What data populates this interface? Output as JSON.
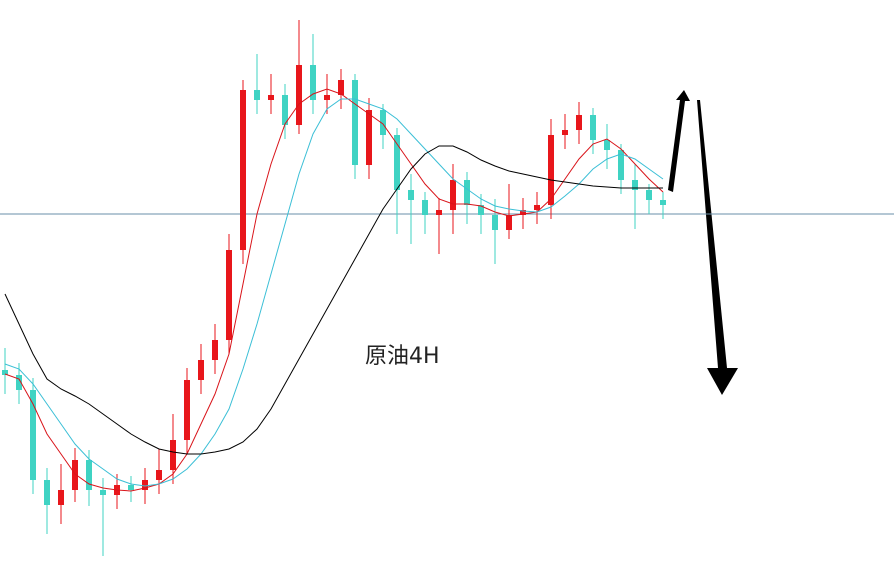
{
  "chart_data": {
    "type": "candlestick",
    "title": "原油4H",
    "ylim": [
      0,
      564
    ],
    "hline": 350,
    "up_color": "#e8161b",
    "down_color": "#3fd3c3",
    "open": [
      194,
      189,
      174,
      84,
      59,
      74,
      104,
      74,
      69,
      79,
      74,
      84,
      94,
      124,
      184,
      204,
      224,
      314,
      474,
      464,
      469,
      439,
      499,
      464,
      469,
      484,
      399,
      454,
      429,
      374,
      364,
      349,
      354,
      384,
      359,
      349,
      334,
      349,
      354,
      359,
      429,
      434,
      449,
      424,
      414,
      384,
      374,
      364
    ],
    "close": [
      189,
      174,
      84,
      59,
      74,
      104,
      74,
      69,
      79,
      74,
      84,
      94,
      124,
      184,
      204,
      224,
      314,
      474,
      464,
      469,
      439,
      499,
      464,
      469,
      484,
      399,
      454,
      429,
      374,
      364,
      349,
      354,
      384,
      359,
      349,
      334,
      349,
      354,
      359,
      429,
      434,
      449,
      424,
      414,
      384,
      374,
      364,
      359
    ],
    "high": [
      216,
      201,
      186,
      96,
      100,
      116,
      114,
      86,
      90,
      88,
      96,
      115,
      150,
      196,
      220,
      240,
      330,
      484,
      510,
      490,
      480,
      544,
      530,
      490,
      495,
      490,
      466,
      460,
      436,
      390,
      372,
      366,
      400,
      392,
      370,
      365,
      380,
      366,
      372,
      445,
      450,
      462,
      456,
      440,
      420,
      400,
      380,
      372
    ],
    "low": [
      170,
      160,
      70,
      30,
      40,
      62,
      58,
      8,
      55,
      62,
      60,
      70,
      80,
      110,
      170,
      190,
      210,
      300,
      450,
      450,
      425,
      430,
      450,
      450,
      455,
      385,
      385,
      415,
      330,
      320,
      330,
      310,
      330,
      340,
      330,
      300,
      325,
      335,
      340,
      345,
      415,
      420,
      410,
      395,
      370,
      335,
      350,
      345
    ],
    "series": [
      {
        "color": "#d9141a",
        "values": [
          190,
          185,
          160,
          130,
          110,
          90,
          80,
          76,
          74,
          73,
          76,
          80,
          90,
          110,
          140,
          170,
          210,
          280,
          350,
          400,
          440,
          460,
          470,
          475,
          470,
          460,
          450,
          440,
          420,
          400,
          380,
          365,
          360,
          360,
          358,
          352,
          348,
          350,
          352,
          365,
          385,
          405,
          420,
          425,
          415,
          400,
          385,
          372
        ]
      },
      {
        "color": "#3bbfd6",
        "values": [
          200,
          195,
          180,
          160,
          140,
          120,
          105,
          95,
          85,
          80,
          78,
          80,
          85,
          95,
          110,
          130,
          155,
          195,
          240,
          290,
          340,
          390,
          430,
          455,
          465,
          465,
          460,
          455,
          445,
          430,
          415,
          400,
          385,
          375,
          365,
          358,
          355,
          353,
          352,
          357,
          368,
          380,
          395,
          405,
          410,
          405,
          395,
          385
        ]
      },
      {
        "color": "#000000",
        "values": [
          270,
          240,
          210,
          185,
          175,
          168,
          160,
          150,
          140,
          130,
          122,
          115,
          112,
          110,
          110,
          112,
          115,
          122,
          135,
          155,
          180,
          205,
          230,
          255,
          280,
          305,
          330,
          355,
          375,
          395,
          410,
          418,
          418,
          412,
          404,
          398,
          393,
          390,
          387,
          384,
          382,
          380,
          378,
          377,
          376,
          376,
          376,
          376
        ]
      }
    ]
  }
}
